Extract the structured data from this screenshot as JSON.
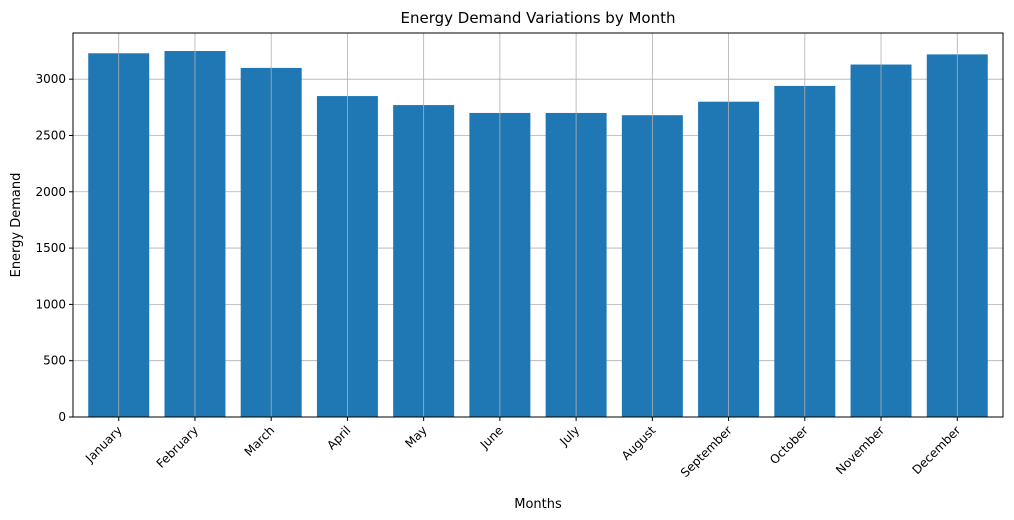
{
  "chart_data": {
    "type": "bar",
    "title": "Energy Demand Variations by Month",
    "xlabel": "Months",
    "ylabel": "Energy Demand",
    "categories": [
      "January",
      "February",
      "March",
      "April",
      "May",
      "June",
      "July",
      "August",
      "September",
      "October",
      "November",
      "December"
    ],
    "values": [
      3230,
      3250,
      3100,
      2850,
      2770,
      2700,
      2700,
      2680,
      2800,
      2940,
      3130,
      3220
    ],
    "yticks": [
      0,
      500,
      1000,
      1500,
      2000,
      2500,
      3000
    ],
    "ylim": [
      0,
      3410
    ],
    "grid": true,
    "bar_color": "#1f77b4",
    "grid_color": "#b0b0b0"
  }
}
